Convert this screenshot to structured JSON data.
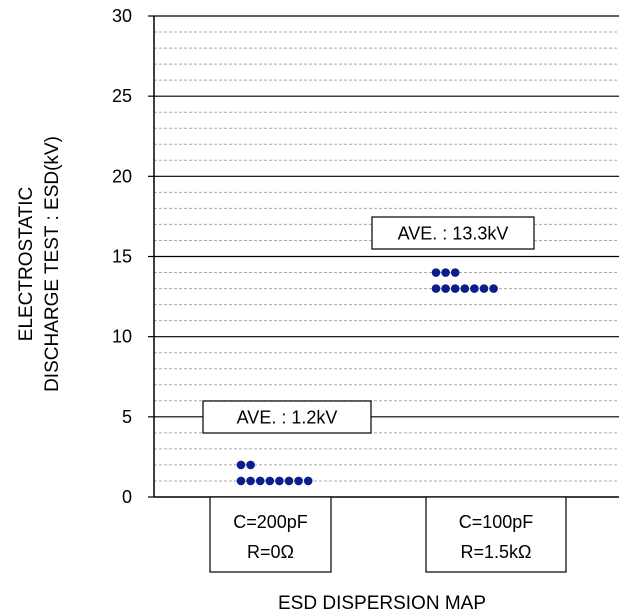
{
  "chart_data": {
    "type": "scatter",
    "title": "",
    "xlabel": "ESD DISPERSION MAP",
    "ylabel_lines": [
      "ELECTROSTATIC",
      "DISCHARGE TEST : ESD(kV)"
    ],
    "ylim": [
      0,
      30
    ],
    "yticks": [
      0,
      5,
      10,
      15,
      20,
      25,
      30
    ],
    "minor_grid_step": 1,
    "major_grid_step": 5,
    "categories": [
      {
        "line1": "C=200pF",
        "line2": "R=0Ω"
      },
      {
        "line1": "C=100pF",
        "line2": "R=1.5kΩ"
      }
    ],
    "series": [
      {
        "points": [
          {
            "y": 1,
            "count": 8
          },
          {
            "y": 2,
            "count": 2
          }
        ],
        "annotation": "AVE. : 1.2kV"
      },
      {
        "points": [
          {
            "y": 13,
            "count": 7
          },
          {
            "y": 14,
            "count": 3
          }
        ],
        "annotation": "AVE. : 13.3kV"
      }
    ],
    "colors": {
      "marker": "#0a1e8c",
      "major_grid": "#000000",
      "minor_grid": "#aaaaaa"
    }
  }
}
